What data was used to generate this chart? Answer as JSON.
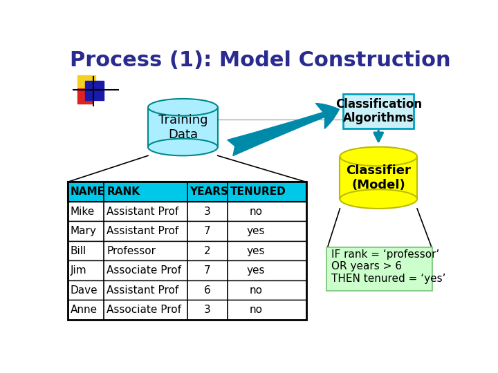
{
  "title": "Process (1): Model Construction",
  "title_color": "#2a2a8f",
  "title_fontsize": 22,
  "background_color": "#ffffff",
  "table_headers": [
    "NAME",
    "RANK",
    "YEARS",
    "TENURED"
  ],
  "table_data": [
    [
      "Mike",
      "Assistant Prof",
      "3",
      "no"
    ],
    [
      "Mary",
      "Assistant Prof",
      "7",
      "yes"
    ],
    [
      "Bill",
      "Professor",
      "2",
      "yes"
    ],
    [
      "Jim",
      "Associate Prof",
      "7",
      "yes"
    ],
    [
      "Dave",
      "Assistant Prof",
      "6",
      "no"
    ],
    [
      "Anne",
      "Associate Prof",
      "3",
      "no"
    ]
  ],
  "header_bg": "#00c8e8",
  "table_border": "#000000",
  "training_cylinder_color": "#aaeeff",
  "training_cylinder_edge": "#008888",
  "training_text": "Training\nData",
  "classifier_cylinder_color": "#ffff00",
  "classifier_cylinder_edge": "#bbbb00",
  "classifier_text": "Classifier\n(Model)",
  "classification_box_color": "#ccf0f8",
  "classification_box_edge": "#00a0c0",
  "classification_text": "Classification\nAlgorithms",
  "rule_box_color": "#ccffcc",
  "rule_box_edge": "#88cc88",
  "rule_text": "IF rank = ‘professor’\nOR years > 6\nTHEN tenured = ‘yes’",
  "arrow_color": "#008aaa",
  "logo_yellow": "#f5d020",
  "logo_red": "#dd2222",
  "logo_blue": "#1a1aaa"
}
